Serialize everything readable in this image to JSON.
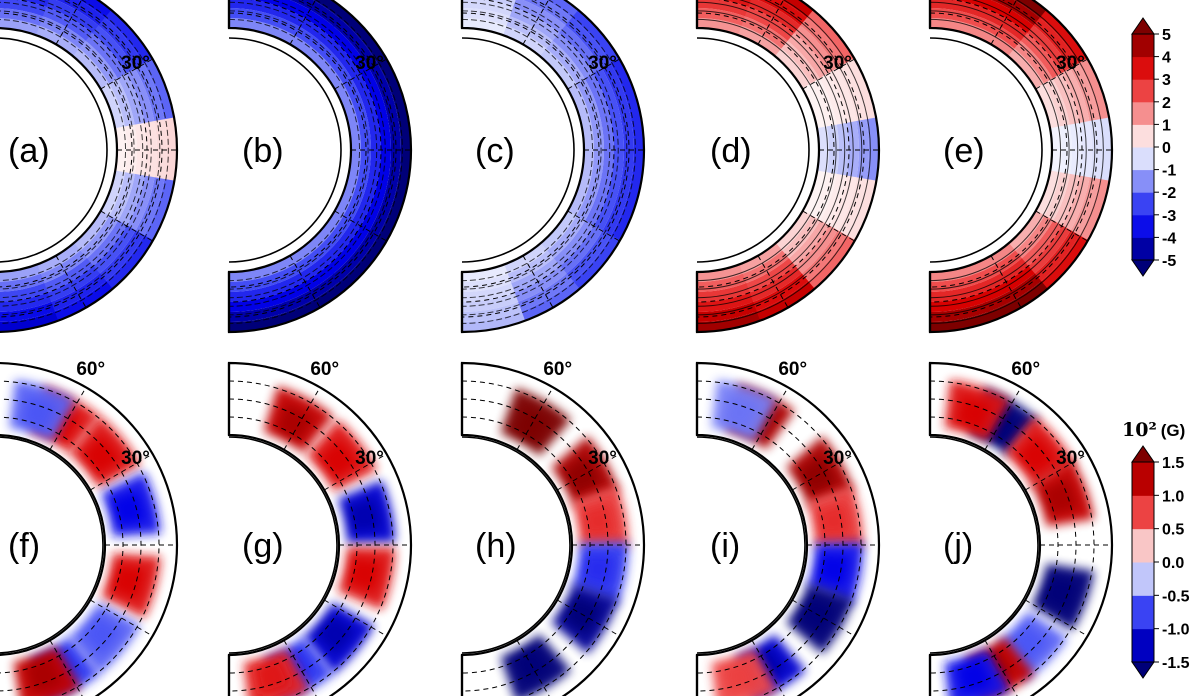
{
  "chart_data": [
    {
      "type": "heatmap",
      "projection": "meridional-half-annulus",
      "row": "top",
      "colorbar": {
        "levels": [
          -5,
          -4,
          -3,
          -2,
          -1,
          0,
          1,
          2,
          3,
          4,
          5
        ],
        "tick_labels": [
          "-5",
          "-4",
          "-3",
          "-2",
          "-1",
          "0",
          "1",
          "2",
          "3",
          "4",
          "5"
        ],
        "extend": "both",
        "colormap": "seismic (blue-white-red)",
        "unit_label": ""
      },
      "latitude_labels": [
        "60°",
        "30°"
      ],
      "contours": "solid = positive, dashed = negative",
      "panels": [
        {
          "label": "(a)",
          "pattern": "mostly negative in outer shell, weak positive patch at equator near mid-depth",
          "band_values": [
            -4,
            -3.5,
            -3,
            -2,
            0.6,
            -2,
            -3,
            -3.5,
            -4
          ]
        },
        {
          "label": "(b)",
          "pattern": "uniformly strong negative in outer shell",
          "band_values": [
            -5,
            -5,
            -5,
            -5,
            -5,
            -5,
            -5,
            -5,
            -5
          ]
        },
        {
          "label": "(c)",
          "pattern": "moderate negative, strongest near equator",
          "band_values": [
            -1,
            -2,
            -2.5,
            -3,
            -3,
            -3,
            -2.5,
            -2,
            -1
          ]
        },
        {
          "label": "(d)",
          "pattern": "strong positive at high latitudes, negative near equator",
          "band_values": [
            4.5,
            4,
            2,
            0.5,
            -1.5,
            0.5,
            2,
            4,
            4.5
          ]
        },
        {
          "label": "(e)",
          "pattern": "strong positive at high latitudes, weak negative at equator",
          "band_values": [
            5,
            5,
            3.5,
            1.5,
            -0.5,
            1.5,
            3.5,
            5,
            5
          ]
        }
      ]
    },
    {
      "type": "heatmap",
      "projection": "meridional-half-annulus",
      "row": "bottom",
      "colorbar": {
        "levels": [
          -1.5,
          -1.0,
          -0.5,
          0.0,
          0.5,
          1.0,
          1.5
        ],
        "tick_labels": [
          "-1.5",
          "-1.0",
          "-0.5",
          "0.0",
          "0.5",
          "1.0",
          "1.5"
        ],
        "extend": "both",
        "colormap": "seismic (blue-white-red)",
        "unit_label": "10² (G)"
      },
      "latitude_labels": [
        "60°",
        "30°"
      ],
      "panels": [
        {
          "label": "(f)",
          "blobs": [
            {
              "lat": 62,
              "value": 1.0
            },
            {
              "lat": 40,
              "value": 1.0
            },
            {
              "lat": 15,
              "value": -1.0
            },
            {
              "lat": -15,
              "value": 1.0
            },
            {
              "lat": -40,
              "value": -0.6
            },
            {
              "lat": -62,
              "value": -0.8
            },
            {
              "lat": 72,
              "value": -0.6
            },
            {
              "lat": -70,
              "value": 1.2
            }
          ]
        },
        {
          "label": "(g)",
          "blobs": [
            {
              "lat": 62,
              "value": 1.2
            },
            {
              "lat": 38,
              "value": 1.0
            },
            {
              "lat": 12,
              "value": -1.2
            },
            {
              "lat": -12,
              "value": 1.0
            },
            {
              "lat": -40,
              "value": -1.2
            },
            {
              "lat": -62,
              "value": -0.8
            },
            {
              "lat": -72,
              "value": 0.9
            }
          ]
        },
        {
          "label": "(h)",
          "blobs": [
            {
              "lat": 60,
              "value": 1.5
            },
            {
              "lat": 30,
              "value": 1.3
            },
            {
              "lat": 10,
              "value": 0.8
            },
            {
              "lat": -10,
              "value": -0.8
            },
            {
              "lat": -30,
              "value": -1.4
            },
            {
              "lat": -60,
              "value": -1.5
            }
          ]
        },
        {
          "label": "(i)",
          "blobs": [
            {
              "lat": 65,
              "value": 1.3
            },
            {
              "lat": 72,
              "value": -0.5
            },
            {
              "lat": 30,
              "value": 1.3
            },
            {
              "lat": 10,
              "value": 0.8
            },
            {
              "lat": -10,
              "value": -1.0
            },
            {
              "lat": -30,
              "value": -1.5
            },
            {
              "lat": -60,
              "value": -1.2
            },
            {
              "lat": -72,
              "value": 0.7
            }
          ]
        },
        {
          "label": "(j)",
          "blobs": [
            {
              "lat": 60,
              "value": -1.5
            },
            {
              "lat": 40,
              "value": 1.0
            },
            {
              "lat": 20,
              "value": 1.2
            },
            {
              "lat": -20,
              "value": -1.5
            },
            {
              "lat": -45,
              "value": -0.6
            },
            {
              "lat": -62,
              "value": 1.2
            },
            {
              "lat": 72,
              "value": 1.0
            },
            {
              "lat": -72,
              "value": -1.0
            }
          ]
        }
      ]
    }
  ]
}
